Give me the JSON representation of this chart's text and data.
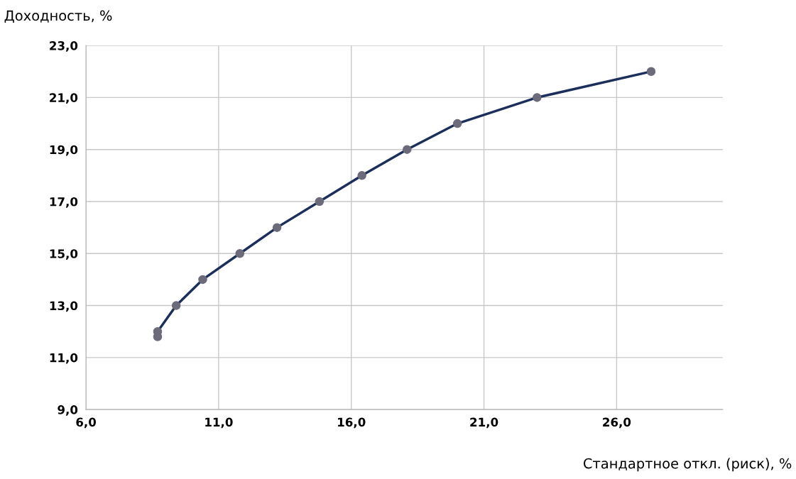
{
  "chart_data": {
    "type": "line",
    "xlabel": "Стандартное откл. (риск), %",
    "ylabel": "Доходность, %",
    "x": [
      8.7,
      8.7,
      9.4,
      10.4,
      11.8,
      13.2,
      14.8,
      16.4,
      18.1,
      20.0,
      23.0,
      27.3
    ],
    "series": [
      {
        "color": "#1b2f5a",
        "values": [
          11.8,
          12.0,
          13.0,
          14.0,
          15.0,
          16.0,
          17.0,
          18.0,
          19.0,
          20.0,
          21.0,
          22.0
        ]
      }
    ],
    "marker": "circle",
    "grid": true,
    "xlim": [
      6,
      30
    ],
    "xticks": [
      {
        "value": 6,
        "label": "6,0"
      },
      {
        "value": 11,
        "label": "11,0"
      },
      {
        "value": 16,
        "label": "16,0"
      },
      {
        "value": 21,
        "label": "21,0"
      },
      {
        "value": 26,
        "label": "26,0"
      }
    ],
    "ylim": [
      9,
      23
    ],
    "yticks": [
      {
        "value": 9,
        "label": "9,0"
      },
      {
        "value": 11,
        "label": "11,0"
      },
      {
        "value": 13,
        "label": "13,0"
      },
      {
        "value": 15,
        "label": "15,0"
      },
      {
        "value": 17,
        "label": "17,0"
      },
      {
        "value": 19,
        "label": "19,0"
      },
      {
        "value": 21,
        "label": "21,0"
      },
      {
        "value": 23,
        "label": "23,0"
      }
    ]
  }
}
